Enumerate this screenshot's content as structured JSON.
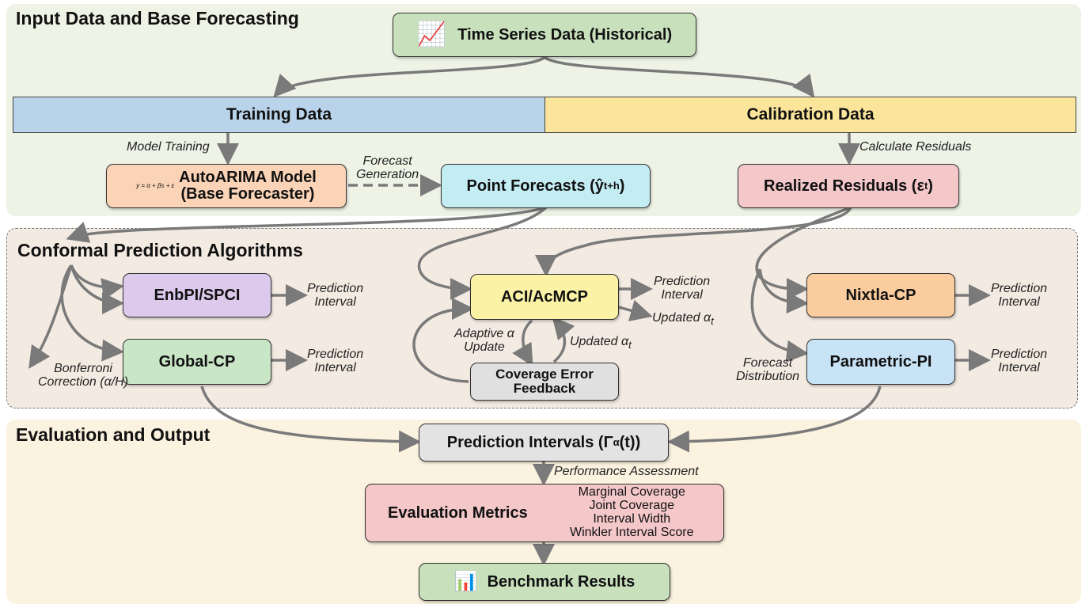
{
  "sections": {
    "input": "Input Data and Base Forecasting",
    "conformal": "Conformal Prediction Algorithms",
    "evaluation": "Evaluation and Output"
  },
  "nodes": {
    "time_series": "Time Series Data (Historical)",
    "training": "Training Data",
    "calibration": "Calibration Data",
    "autoarima_formula": "y = α + βs + ε",
    "autoarima_1": "AutoARIMA Model",
    "autoarima_2": "(Base Forecaster)",
    "point_forecasts": "Point Forecasts (ŷ",
    "point_forecasts_sub": "t+h",
    "residuals": "Realized Residuals (ε",
    "residuals_sub": "t",
    "enbpi": "EnbPI/SPCI",
    "global_cp": "Global-CP",
    "aci": "ACI/AcMCP",
    "coverage_1": "Coverage Error",
    "coverage_2": "Feedback",
    "nixtla": "Nixtla-CP",
    "parametric": "Parametric-PI",
    "pred_intervals": "Prediction Intervals (Γ",
    "pred_intervals_sub": "α",
    "pred_intervals_end": "(t))",
    "eval_metrics": "Evaluation Metrics",
    "metrics": [
      "Marginal Coverage",
      "Joint Coverage",
      "Interval Width",
      "Winkler Interval Score"
    ],
    "benchmark": "Benchmark Results"
  },
  "labels": {
    "model_training": "Model Training",
    "forecast_gen_1": "Forecast",
    "forecast_gen_2": "Generation",
    "calc_residuals": "Calculate Residuals",
    "pi_1": "Prediction",
    "pi_2": "Interval",
    "updated_alpha": "Updated α",
    "updated_alpha_sub": "t",
    "adaptive_1": "Adaptive α",
    "adaptive_2": "Update",
    "bonferroni_1": "Bonferroni",
    "bonferroni_2": "Correction (α/H)",
    "forecast_dist_1": "Forecast",
    "forecast_dist_2": "Distribution",
    "performance": "Performance Assessment"
  },
  "icons": [
    "line-chart-icon",
    "bar-chart-icon"
  ]
}
